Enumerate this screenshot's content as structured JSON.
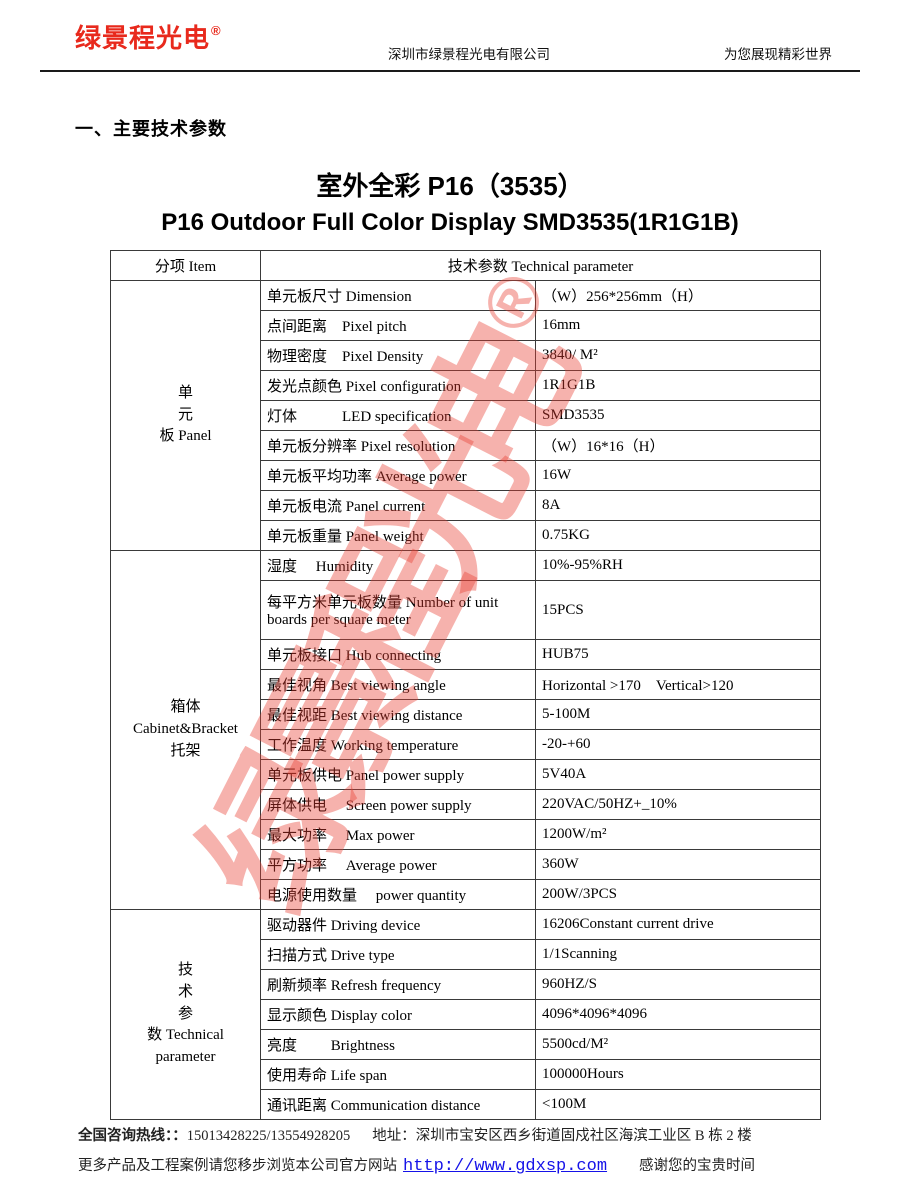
{
  "colors": {
    "logo_red": "#e8291c",
    "watermark_red": "#e93e32",
    "link_blue": "#1512e8",
    "border_black": "#3a3a3a"
  },
  "header": {
    "logo": "绿景程光电",
    "registered_mark": "®",
    "company": "深圳市绿景程光电有限公司",
    "slogan": "为您展现精彩世界"
  },
  "section_title": "一、主要技术参数",
  "title_zh": "室外全彩 P16（3535）",
  "title_en": "P16 Outdoor Full Color Display SMD3535(1R1G1B)",
  "watermark": {
    "text": "绿景程光电",
    "reg": "®"
  },
  "table": {
    "col1_header": "分项 Item",
    "col2_header": "技术参数 Technical parameter",
    "groups": [
      {
        "label_lines": [
          "单",
          "元",
          "板 Panel"
        ],
        "rows": [
          {
            "label": "单元板尺寸 Dimension",
            "value": "（W）256*256mm（H）"
          },
          {
            "label": "点间距离　Pixel pitch",
            "value": "16mm"
          },
          {
            "label": "物理密度　Pixel Density",
            "value": "3840/ M²"
          },
          {
            "label": "发光点颜色 Pixel configuration",
            "value": "1R1G1B"
          },
          {
            "label": "灯体　　　LED specification",
            "value": "SMD3535"
          },
          {
            "label": "单元板分辨率 Pixel resolution",
            "value": "（W）16*16（H）"
          },
          {
            "label": "单元板平均功率 Average power",
            "value": "16W"
          },
          {
            "label": "单元板电流 Panel current",
            "value": "8A"
          },
          {
            "label": "单元板重量 Panel weight",
            "value": "0.75KG"
          }
        ]
      },
      {
        "label_lines": [
          "箱体",
          "Cabinet&Bracket",
          "托架"
        ],
        "rows": [
          {
            "label": "湿度　 Humidity",
            "value": "10%-95%RH"
          },
          {
            "label": "每平方米单元板数量 Number of unit boards per square meter",
            "value": "15PCS",
            "tall": true
          },
          {
            "label": "单元板接口 Hub connecting",
            "value": "HUB75"
          },
          {
            "label": "最佳视角 Best viewing angle",
            "value": "Horizontal >170　Vertical>120"
          },
          {
            "label": "最佳视距 Best viewing distance",
            "value": "5-100M"
          },
          {
            "label": "工作温度 Working temperature",
            "value": "-20-+60"
          },
          {
            "label": "单元板供电 Panel power supply",
            "value": "5V40A"
          },
          {
            "label": "屏体供电　 Screen power supply",
            "value": "220VAC/50HZ+_10%"
          },
          {
            "label": "最大功率　 Max power",
            "value": "1200W/m²"
          },
          {
            "label": "平方功率　 Average power",
            "value": "360W"
          },
          {
            "label": "电源使用数量　 power quantity",
            "value": "200W/3PCS"
          }
        ]
      },
      {
        "label_lines": [
          "技",
          "术",
          "参",
          "数 Technical",
          "parameter"
        ],
        "rows": [
          {
            "label": "驱动器件 Driving device",
            "value": "16206Constant current drive"
          },
          {
            "label": "扫描方式 Drive type",
            "value": "1/1Scanning"
          },
          {
            "label": "刷新频率 Refresh frequency",
            "value": "960HZ/S"
          },
          {
            "label": "显示颜色 Display color",
            "value": "4096*4096*4096"
          },
          {
            "label": "亮度　　 Brightness",
            "value": "5500cd/M²"
          },
          {
            "label": "使用寿命 Life span",
            "value": "100000Hours"
          },
          {
            "label": "通讯距离 Communication distance",
            "value": "<100M"
          }
        ]
      }
    ]
  },
  "footer": {
    "hotline_label": "全国咨询热线：：",
    "hotline_numbers": "15013428225/13554928205",
    "address_label": "地址：",
    "address": "深圳市宝安区西乡街道固戍社区海滨工业区 B 栋 2 楼",
    "line2_prefix": "更多产品及工程案例请您移步浏览本公司官方网站",
    "url": "http://www.gdxsp.com",
    "line2_suffix": "感谢您的宝贵时间"
  }
}
